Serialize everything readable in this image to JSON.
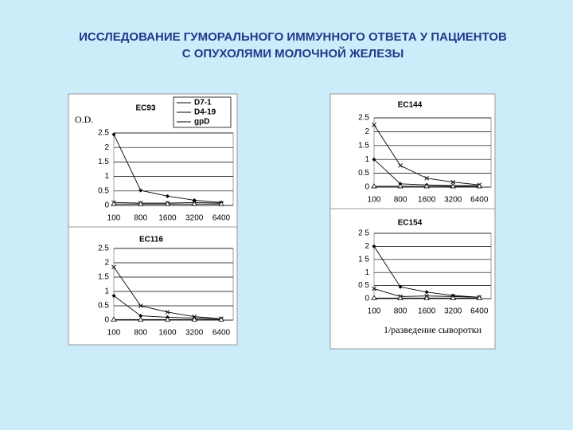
{
  "title_lines": [
    "ИССЛЕДОВАНИЕ ГУМОРАЛЬНОГО ИММУННОГО ОТВЕТА У ПАЦИЕНТОВ",
    "С ОПУХОЛЯМИ МОЛОЧНОЙ ЖЕЛЕЗЫ"
  ],
  "chart_data": [
    {
      "type": "line",
      "title": "EC93",
      "y_label": "O.D.",
      "legend": "upper right",
      "categories": [
        "100",
        "800",
        "1600",
        "3200",
        "6400"
      ],
      "ylim": [
        0,
        2.5
      ],
      "yticks": [
        0,
        0.5,
        1,
        1.5,
        2,
        2.5
      ],
      "grid": true,
      "series": [
        {
          "name": "D7-1",
          "color": "#000000",
          "marker": "diamond",
          "values": [
            2.45,
            0.52,
            0.32,
            0.18,
            0.1
          ]
        },
        {
          "name": "D4-19",
          "color": "#000000",
          "marker": "x",
          "values": [
            0.1,
            0.08,
            0.08,
            0.1,
            0.08
          ]
        },
        {
          "name": "gpD",
          "color": "#000000",
          "marker": "triangle",
          "values": [
            0.05,
            0.05,
            0.05,
            0.05,
            0.05
          ]
        }
      ]
    },
    {
      "type": "line",
      "title": "EC116",
      "categories": [
        "100",
        "800",
        "1600",
        "3200",
        "6400"
      ],
      "ylim": [
        0,
        2.5
      ],
      "yticks": [
        0,
        0.5,
        1,
        1.5,
        2,
        2.5
      ],
      "grid": true,
      "series": [
        {
          "color": "#000000",
          "marker": "diamond",
          "values": [
            0.85,
            0.15,
            0.1,
            0.07,
            0.05
          ]
        },
        {
          "color": "#000000",
          "marker": "x",
          "values": [
            1.85,
            0.5,
            0.28,
            0.12,
            0.05
          ]
        },
        {
          "color": "#000000",
          "marker": "triangle",
          "values": [
            0.02,
            0.02,
            0.02,
            0.02,
            0.02
          ]
        }
      ]
    },
    {
      "type": "line",
      "title": "EC144",
      "categories": [
        "100",
        "800",
        "1600",
        "3200",
        "6400"
      ],
      "ylim": [
        0,
        2.5
      ],
      "yticks": [
        0,
        0.5,
        1,
        1.5,
        2,
        2.5
      ],
      "grid": true,
      "series": [
        {
          "color": "#000000",
          "marker": "diamond",
          "values": [
            1.0,
            0.12,
            0.08,
            0.05,
            0.05
          ]
        },
        {
          "color": "#000000",
          "marker": "x",
          "values": [
            2.25,
            0.78,
            0.32,
            0.18,
            0.08
          ]
        },
        {
          "color": "#000000",
          "marker": "triangle",
          "values": [
            0.03,
            0.03,
            0.03,
            0.03,
            0.03
          ]
        }
      ]
    },
    {
      "type": "line",
      "title": "EC154",
      "x_label": "1/разведение сыворотки",
      "categories": [
        "100",
        "800",
        "1600",
        "3200",
        "6400"
      ],
      "ylim": [
        0,
        2.5
      ],
      "yticks": [
        0,
        {
          "value": 0.5,
          "label": "0 5"
        },
        1,
        {
          "value": 1.5,
          "label": "1 5"
        },
        2,
        {
          "value": 2.5,
          "label": "2 5"
        }
      ],
      "grid": true,
      "series": [
        {
          "color": "#000000",
          "marker": "diamond",
          "values": [
            2.0,
            0.45,
            0.25,
            0.12,
            0.05
          ]
        },
        {
          "color": "#000000",
          "marker": "x",
          "values": [
            0.38,
            0.08,
            0.1,
            0.08,
            0.05
          ]
        },
        {
          "color": "#000000",
          "marker": "triangle",
          "values": [
            0.02,
            0.02,
            0.02,
            0.02,
            0.02
          ]
        }
      ]
    }
  ]
}
